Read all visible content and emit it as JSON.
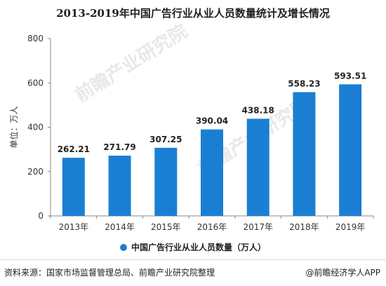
{
  "title": "2013-2019年中国广告行业从业人员数量统计及增长情况",
  "footer": {
    "source": "资料来源：国家市场监督管理总局、前瞻产业研究院整理",
    "brand": "@前瞻经济学人APP"
  },
  "watermark": {
    "text": "前瞻产业研究院"
  },
  "colors": {
    "bar": "#1a7fd3",
    "axis": "#888888",
    "grid": "#e6e6e6"
  },
  "chart_data": {
    "type": "bar",
    "categories": [
      "2013年",
      "2014年",
      "2015年",
      "2016年",
      "2017年",
      "2018年",
      "2019年"
    ],
    "series": [
      {
        "name": "中国广告行业从业人员数量（万人）",
        "values": [
          262.21,
          271.79,
          307.25,
          390.04,
          438.18,
          558.23,
          593.51
        ]
      }
    ],
    "value_labels": [
      "262.21",
      "271.79",
      "307.25",
      "390.04",
      "438.18",
      "558.23",
      "593.51"
    ],
    "ylabel": "单位：万人",
    "ylim": [
      0,
      800
    ],
    "yticks": [
      0,
      200,
      400,
      600,
      800
    ],
    "legend": "bottom",
    "grid": false
  }
}
